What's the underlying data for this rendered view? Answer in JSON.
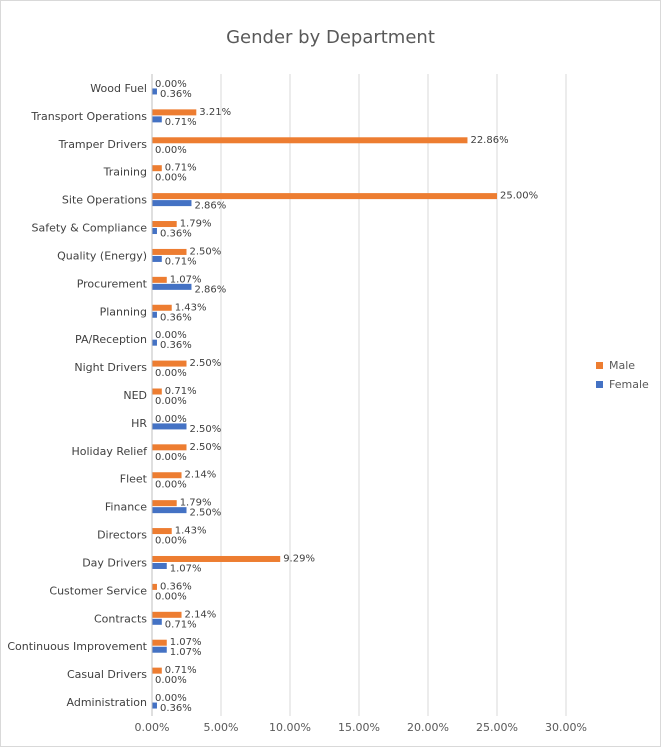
{
  "chart_data": {
    "type": "bar",
    "orientation": "horizontal",
    "title": "Gender by Department",
    "categories": [
      "Wood Fuel",
      "Transport Operations",
      "Tramper Drivers",
      "Training",
      "Site Operations",
      "Safety & Compliance",
      "Quality (Energy)",
      "Procurement",
      "Planning",
      "PA/Reception",
      "Night Drivers",
      "NED",
      "HR",
      "Holiday Relief",
      "Fleet",
      "Finance",
      "Directors",
      "Day Drivers",
      "Customer Service",
      "Contracts",
      "Continuous Improvement",
      "Casual Drivers",
      "Administration"
    ],
    "series": [
      {
        "name": "Male",
        "color": "#ed7d31",
        "values": [
          0.0,
          3.21,
          22.86,
          0.71,
          25.0,
          1.79,
          2.5,
          1.07,
          1.43,
          0.0,
          2.5,
          0.71,
          0.0,
          2.5,
          2.14,
          1.79,
          1.43,
          9.29,
          0.36,
          2.14,
          1.07,
          0.71,
          0.0
        ]
      },
      {
        "name": "Female",
        "color": "#4472c4",
        "values": [
          0.36,
          0.71,
          0.0,
          0.0,
          2.86,
          0.36,
          0.71,
          2.86,
          0.36,
          0.36,
          0.0,
          0.0,
          2.5,
          0.0,
          0.0,
          2.5,
          0.0,
          1.07,
          0.0,
          0.71,
          1.07,
          0.0,
          0.36
        ]
      }
    ],
    "xlim": [
      0,
      30
    ],
    "xticks": [
      "0.00%",
      "5.00%",
      "10.00%",
      "15.00%",
      "20.00%",
      "25.00%",
      "30.00%"
    ],
    "grid": true,
    "legend_position": "right"
  }
}
